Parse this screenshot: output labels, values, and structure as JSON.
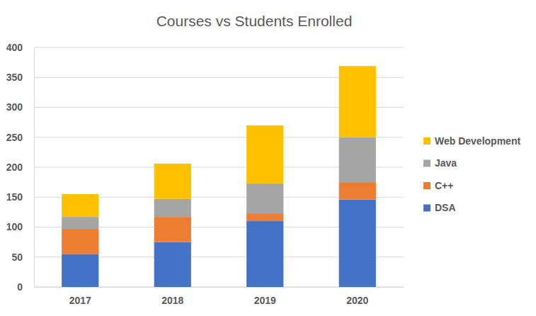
{
  "chart_data": {
    "type": "bar",
    "title": "Courses vs Students Enrolled",
    "categories": [
      "2017",
      "2018",
      "2019",
      "2020"
    ],
    "series": [
      {
        "name": "DSA",
        "color": "#4472c4",
        "values": [
          55,
          75,
          110,
          146
        ]
      },
      {
        "name": "C++",
        "color": "#ed7d31",
        "values": [
          42,
          42,
          13,
          29
        ]
      },
      {
        "name": "Java",
        "color": "#a5a5a5",
        "values": [
          20,
          30,
          50,
          75
        ]
      },
      {
        "name": "Web Development",
        "color": "#ffc000",
        "values": [
          38,
          59,
          97,
          119
        ]
      }
    ],
    "ylim": [
      0,
      400
    ],
    "yticks": [
      0,
      50,
      100,
      150,
      200,
      250,
      300,
      350,
      400
    ],
    "stacked": true,
    "grid": true,
    "legend": "right"
  }
}
